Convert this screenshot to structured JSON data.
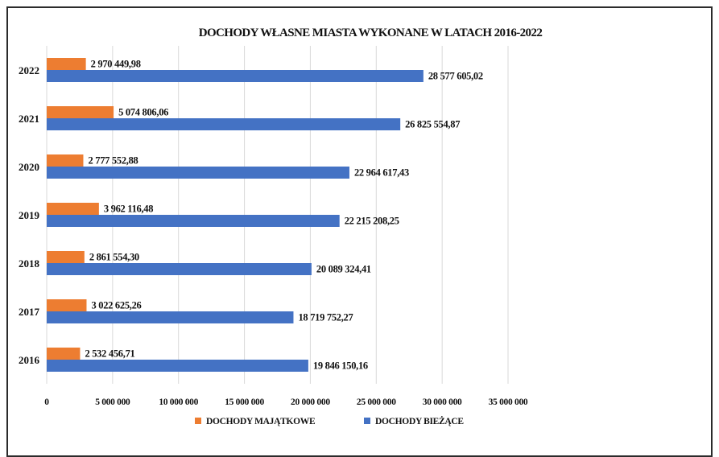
{
  "chart_data": {
    "type": "bar",
    "orientation": "horizontal",
    "title": "DOCHODY WŁASNE MIASTA WYKONANE W LATACH 2016-2022",
    "categories": [
      "2016",
      "2017",
      "2018",
      "2019",
      "2020",
      "2021",
      "2022"
    ],
    "series": [
      {
        "name": "DOCHODY MAJĄTKOWE",
        "color": "#ED7D31",
        "values": [
          2532456.71,
          3022625.26,
          2861554.3,
          3962116.48,
          2777552.88,
          5074806.06,
          2970449.98
        ],
        "labels": [
          "2 532 456,71",
          "3 022 625,26",
          "2 861 554,30",
          "3 962 116,48",
          "2 777 552,88",
          "5 074 806,06",
          "2 970 449,98"
        ]
      },
      {
        "name": "DOCHODY BIEŻĄCE",
        "color": "#4472C4",
        "values": [
          19846150.16,
          18719752.27,
          20089324.41,
          22215208.25,
          22964617.43,
          26825554.87,
          28577605.02
        ],
        "labels": [
          "19 846 150,16",
          "18 719 752,27",
          "20 089 324,41",
          "22 215 208,25",
          "22 964 617,43",
          "26 825 554,87",
          "28 577 605,02"
        ]
      }
    ],
    "xlim": [
      0,
      35000000
    ],
    "xticks": [
      0,
      5000000,
      10000000,
      15000000,
      20000000,
      25000000,
      30000000,
      35000000
    ],
    "xtick_labels": [
      "0",
      "5 000 000",
      "10 000 000",
      "15 000 000",
      "20 000 000",
      "25 000 000",
      "30 000 000",
      "35 000 000"
    ],
    "grid": "vertical",
    "legend_position": "bottom"
  }
}
